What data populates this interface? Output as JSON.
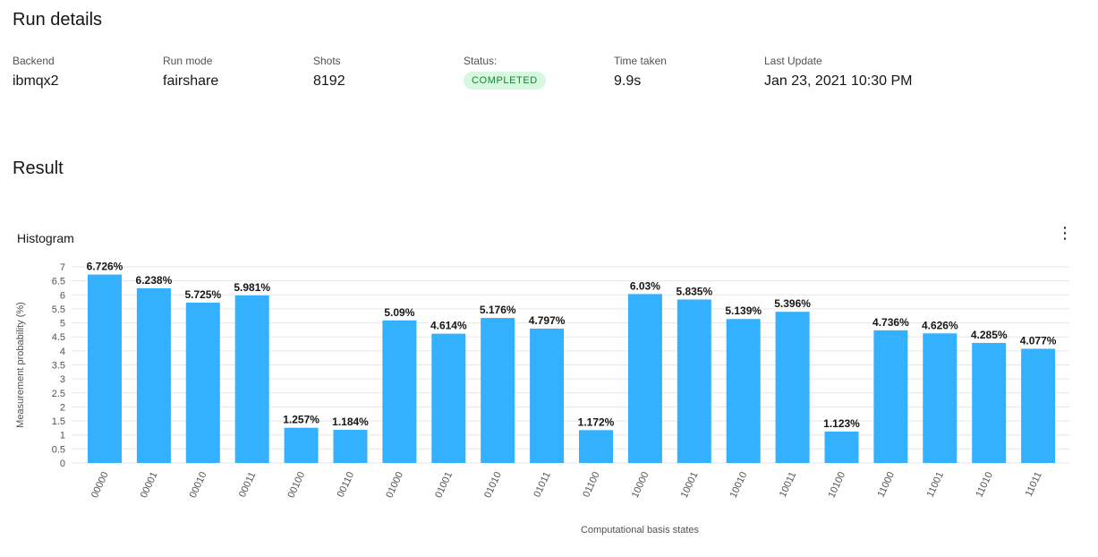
{
  "run_details": {
    "title": "Run details",
    "fields": [
      {
        "label": "Backend",
        "value": "ibmqx2"
      },
      {
        "label": "Run mode",
        "value": "fairshare"
      },
      {
        "label": "Shots",
        "value": "8192"
      },
      {
        "label": "Status:",
        "value": "COMPLETED"
      },
      {
        "label": "Time taken",
        "value": "9.9s"
      },
      {
        "label": "Last Update",
        "value": "Jan 23, 2021 10:30 PM"
      }
    ],
    "status_color": "#198038",
    "status_bg": "#d7f7df"
  },
  "result": {
    "title": "Result",
    "histogram_title": "Histogram",
    "menu_icon": "overflow-menu-vertical-icon"
  },
  "chart_data": {
    "type": "bar",
    "categories": [
      "00000",
      "00001",
      "00010",
      "00011",
      "00100",
      "00110",
      "01000",
      "01001",
      "01010",
      "01011",
      "01100",
      "10000",
      "10001",
      "10010",
      "10011",
      "10100",
      "11000",
      "11001",
      "11010",
      "11011"
    ],
    "values": [
      6.726,
      6.238,
      5.725,
      5.981,
      1.257,
      1.184,
      5.09,
      4.614,
      5.176,
      4.797,
      1.172,
      6.03,
      5.835,
      5.139,
      5.396,
      1.123,
      4.736,
      4.626,
      4.285,
      4.077
    ],
    "value_labels": [
      "6.726%",
      "6.238%",
      "5.725%",
      "5.981%",
      "1.257%",
      "1.184%",
      "5.09%",
      "4.614%",
      "5.176%",
      "4.797%",
      "1.172%",
      "6.03%",
      "5.835%",
      "5.139%",
      "5.396%",
      "1.123%",
      "4.736%",
      "4.626%",
      "4.285%",
      "4.077%"
    ],
    "yticks": [
      "0",
      "0.5",
      "1",
      "1.5",
      "2",
      "2.5",
      "3",
      "3.5",
      "4",
      "4.5",
      "5",
      "5.5",
      "6",
      "6.5",
      "7"
    ],
    "xlabel": "Computational basis states",
    "ylabel": "Measurement probability (%)",
    "ylim": [
      0,
      7
    ],
    "grid": true,
    "bar_color": "#33b1ff"
  }
}
